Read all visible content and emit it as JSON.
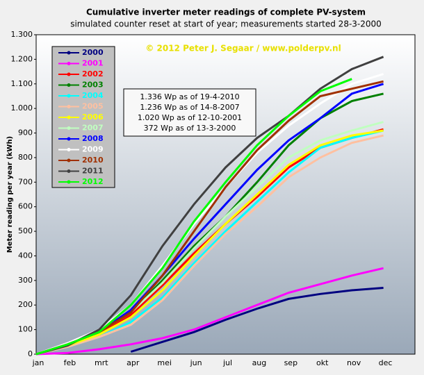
{
  "chart_data": {
    "type": "line",
    "title": "Cumulative inverter meter readings of complete PV-system",
    "subtitle": "simulated counter reset at start of year; measurements started 28-3-2000",
    "credit": "© 2012 Peter J. Segaar / www.polderpv.nl",
    "annotations": [
      "1.336 Wp as of 19-4-2010",
      "1.236 Wp as of 14-8-2007",
      "1.020 Wp as of 12-10-2001",
      "372 Wp as of 13-3-2000"
    ],
    "ylabel": "Meter reading per year (kWh)",
    "categories": [
      "jan",
      "feb",
      "mrt",
      "apr",
      "mei",
      "jun",
      "jul",
      "aug",
      "sep",
      "okt",
      "nov",
      "dec"
    ],
    "ylim": [
      0,
      1300
    ],
    "yticks": [
      0,
      100,
      200,
      300,
      400,
      500,
      600,
      700,
      800,
      900,
      {
        "value": 1000,
        "label": "1.000"
      },
      {
        "value": 1100,
        "label": "1.100"
      },
      {
        "value": 1200,
        "label": "1.200"
      },
      {
        "value": 1300,
        "label": "1.300"
      }
    ],
    "grid": false,
    "legend": "top-left",
    "series": [
      {
        "name": "2000",
        "color": "#000080",
        "values": [
          null,
          null,
          null,
          10,
          50,
          90,
          140,
          185,
          225,
          245,
          260,
          270
        ]
      },
      {
        "name": "2001",
        "color": "#ff00ff",
        "values": [
          0,
          5,
          20,
          40,
          65,
          100,
          150,
          200,
          250,
          285,
          320,
          350
        ]
      },
      {
        "name": "2002",
        "color": "#ff0000",
        "values": [
          0,
          40,
          80,
          160,
          280,
          410,
          530,
          640,
          760,
          840,
          880,
          915
        ]
      },
      {
        "name": "2003",
        "color": "#008000",
        "values": [
          0,
          40,
          90,
          170,
          300,
          440,
          560,
          700,
          850,
          960,
          1030,
          1060
        ]
      },
      {
        "name": "2004",
        "color": "#00ffff",
        "values": [
          0,
          30,
          70,
          130,
          230,
          370,
          500,
          620,
          740,
          840,
          880,
          910
        ]
      },
      {
        "name": "2005",
        "color": "#ffc0a0",
        "values": [
          0,
          30,
          70,
          120,
          220,
          360,
          490,
          600,
          720,
          800,
          860,
          890
        ]
      },
      {
        "name": "2006",
        "color": "#ffff00",
        "values": [
          0,
          35,
          80,
          150,
          260,
          400,
          530,
          650,
          770,
          850,
          890,
          910
        ]
      },
      {
        "name": "2007",
        "color": "#c0ffc0",
        "values": [
          0,
          40,
          90,
          170,
          290,
          430,
          560,
          680,
          800,
          870,
          910,
          945
        ]
      },
      {
        "name": "2008",
        "color": "#0000ff",
        "values": [
          0,
          40,
          90,
          180,
          320,
          470,
          610,
          750,
          870,
          960,
          1060,
          1100
        ]
      },
      {
        "name": "2009",
        "color": "#ffffff",
        "values": [
          0,
          45,
          100,
          200,
          360,
          530,
          680,
          820,
          930,
          1020,
          1100,
          1140
        ]
      },
      {
        "name": "2010",
        "color": "#a03000",
        "values": [
          0,
          40,
          90,
          170,
          320,
          500,
          680,
          830,
          950,
          1050,
          1080,
          1110
        ]
      },
      {
        "name": "2011",
        "color": "#404040",
        "values": [
          0,
          35,
          100,
          240,
          440,
          610,
          760,
          880,
          970,
          1080,
          1160,
          1210
        ]
      },
      {
        "name": "2012",
        "color": "#00ff00",
        "values": [
          0,
          40,
          90,
          200,
          350,
          540,
          700,
          850,
          970,
          1070,
          1120,
          null
        ]
      }
    ]
  }
}
